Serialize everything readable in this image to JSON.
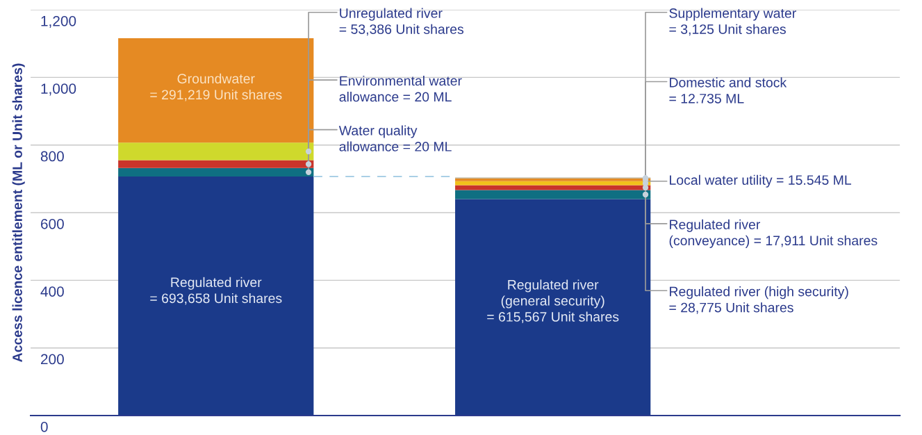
{
  "chart_data": {
    "type": "bar",
    "stacked": true,
    "ylabel": "Access licence entitlement (ML or Unit shares)",
    "categories": [
      null,
      null
    ],
    "series": [
      {
        "colors": [
          "#1b3a8a",
          "#1b3a8a"
        ],
        "values": [
          707,
          640
        ]
      },
      {
        "colors": [
          "#0f6f82",
          "#0f6f82"
        ],
        "values": [
          25,
          27
        ]
      },
      {
        "colors": [
          "#c9342a",
          "#c9342a"
        ],
        "values": [
          23,
          14
        ]
      },
      {
        "colors": [
          "#cfd92c",
          "#f1c21b"
        ],
        "values": [
          52,
          12
        ]
      },
      {
        "colors": [
          "#e58a23",
          "#e58a23"
        ],
        "values": [
          309,
          8
        ]
      },
      {
        "colors": [
          "#b5a88a",
          "#b5a88a"
        ],
        "values": [
          null,
          3
        ]
      }
    ],
    "ylim": [
      0,
      1200
    ],
    "yticks": [
      0,
      200,
      400,
      600,
      800,
      {
        "value": 1000,
        "label": "1,000"
      },
      {
        "value": 1200,
        "label": "1,200"
      }
    ],
    "grid": "y",
    "ref_lines": [
      {
        "axis": "y",
        "value": 707,
        "label": null,
        "color": "#a9cfe6",
        "line_style": "dashed"
      }
    ],
    "annotations": [
      "Groundwater\n= 291,219 Unit shares",
      "Regulated river\n= 693,658 Unit shares",
      "Regulated river\n(general security)\n= 615,567 Unit shares",
      "Unregulated river\n= 53,386 Unit shares",
      "Environmental water\nallowance = 20 ML",
      "Water quality\nallowance = 20 ML",
      "Supplementary water\n= 3,125 Unit shares",
      "Domestic and stock\n= 12.735 ML",
      "Local water utility = 15.545 ML",
      "Regulated river\n(conveyance) = 17,911 Unit shares",
      "Regulated river (high security)\n= 28,775 Unit shares"
    ]
  }
}
